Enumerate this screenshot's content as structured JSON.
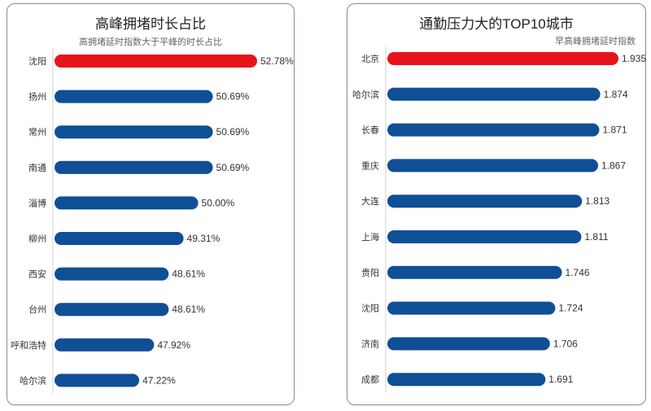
{
  "chart_data": [
    {
      "type": "bar",
      "orientation": "horizontal",
      "title": "高峰拥堵时长占比",
      "subtitle": "高拥堵延时指数大于平峰的时长占比",
      "categories": [
        "沈阳",
        "扬州",
        "常州",
        "南通",
        "淄博",
        "柳州",
        "西安",
        "台州",
        "呼和浩特",
        "哈尔滨"
      ],
      "values": [
        52.78,
        50.69,
        50.69,
        50.69,
        50.0,
        49.31,
        48.61,
        48.61,
        47.92,
        47.22
      ],
      "labels": [
        "52.78%",
        "50.69%",
        "50.69%",
        "50.69%",
        "50.00%",
        "49.31%",
        "48.61%",
        "48.61%",
        "47.92%",
        "47.22%"
      ],
      "highlight_color": "#e8141b",
      "bar_color": "#0f4f96",
      "highlight_index": 0
    },
    {
      "type": "bar",
      "orientation": "horizontal",
      "title": "通勤压力大的TOP10城市",
      "subtitle": "早高峰拥堵延时指数",
      "categories": [
        "北京",
        "哈尔滨",
        "长春",
        "重庆",
        "大连",
        "上海",
        "贵阳",
        "沈阳",
        "济南",
        "成都"
      ],
      "values": [
        1.935,
        1.874,
        1.871,
        1.867,
        1.813,
        1.811,
        1.746,
        1.724,
        1.706,
        1.691
      ],
      "labels": [
        "1.935",
        "1.874",
        "1.871",
        "1.867",
        "1.813",
        "1.811",
        "1.746",
        "1.724",
        "1.706",
        "1.691"
      ],
      "highlight_color": "#e8141b",
      "bar_color": "#0f4f96",
      "highlight_index": 0
    }
  ]
}
